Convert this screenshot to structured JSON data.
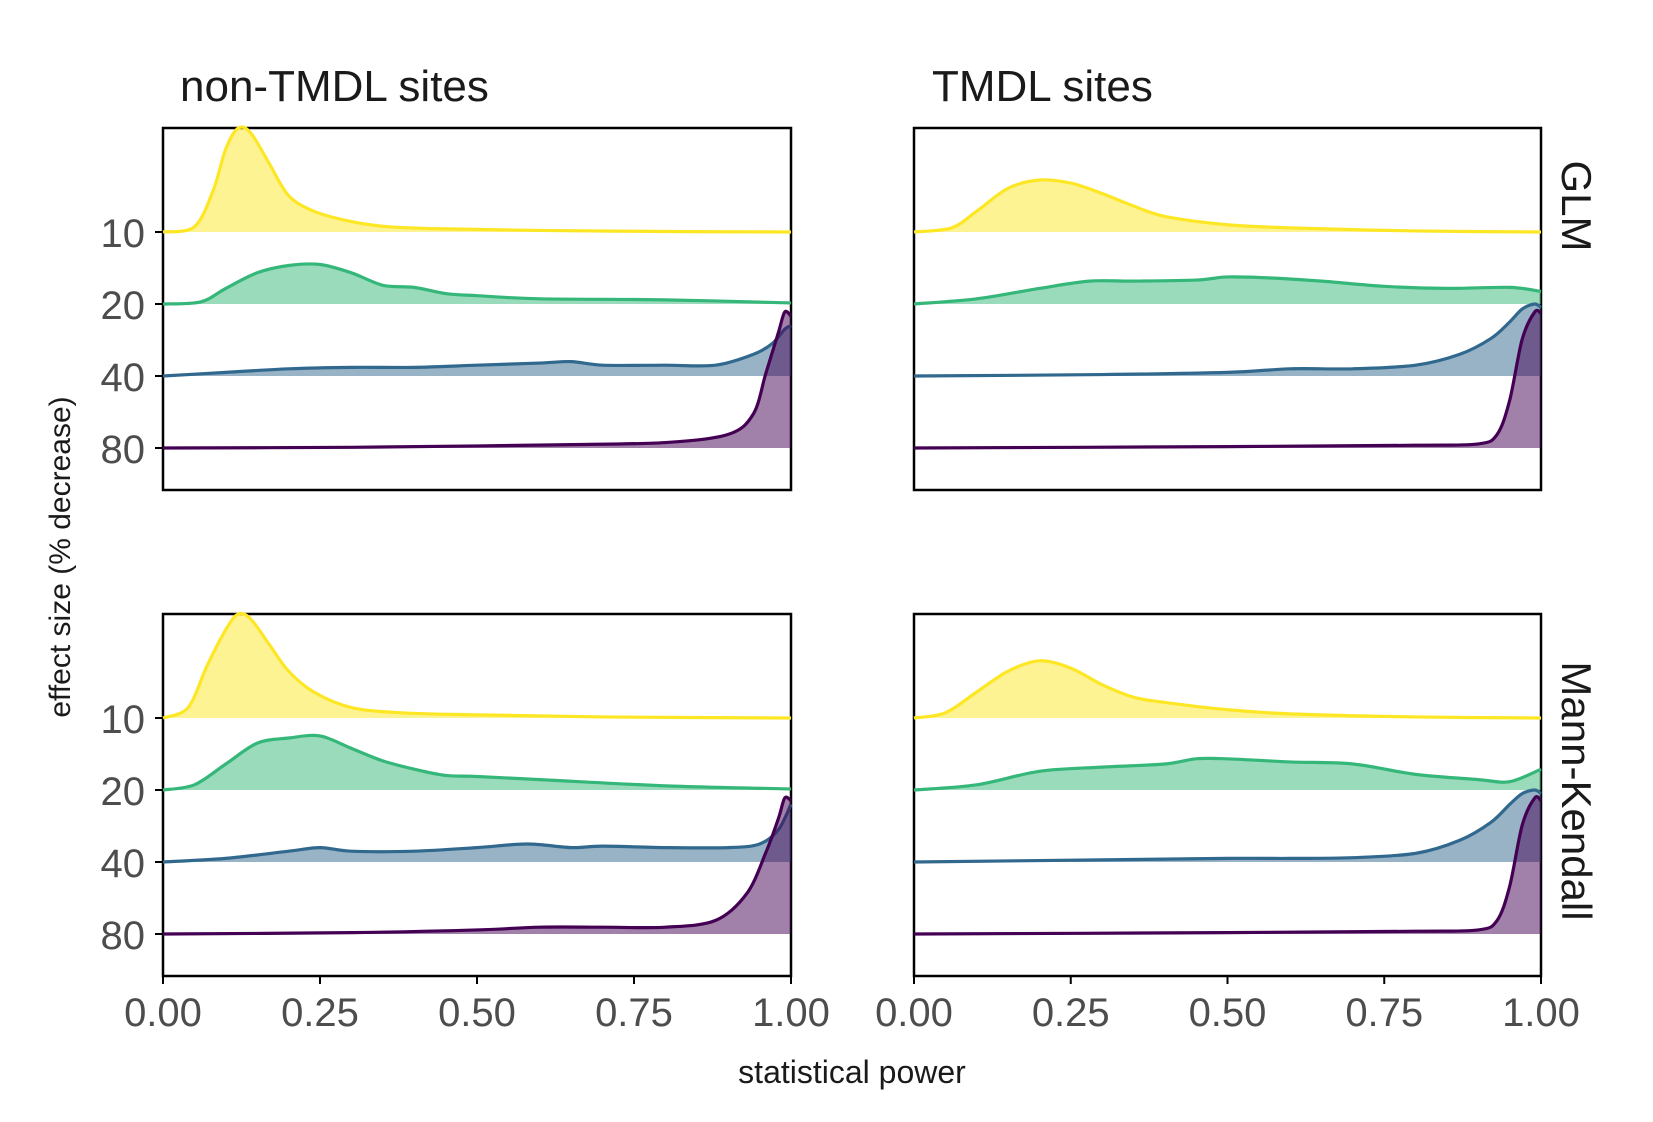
{
  "figure": {
    "col_titles": [
      "non-TMDL sites",
      "TMDL sites"
    ],
    "row_strips": [
      "GLM",
      "Mann-Kendall"
    ],
    "xlabel": "statistical power",
    "ylabel": "effect size (% decrease)"
  },
  "chart_data": [
    {
      "type": "area",
      "panel": "non-TMDL sites / GLM",
      "x_ticks": [
        "0.00",
        "0.25",
        "0.50",
        "0.75",
        "1.00"
      ],
      "y_ticks": [
        "10",
        "20",
        "40",
        "80"
      ],
      "xlim": [
        0,
        1
      ],
      "series": [
        {
          "name": "10",
          "color": "#FDE725",
          "x": [
            0,
            0.05,
            0.08,
            0.1,
            0.12,
            0.14,
            0.17,
            0.2,
            0.24,
            0.3,
            0.36,
            0.45,
            0.6,
            0.8,
            1.0
          ],
          "density": [
            0,
            0.05,
            0.4,
            0.8,
            1.0,
            0.95,
            0.65,
            0.35,
            0.2,
            0.1,
            0.05,
            0.03,
            0.015,
            0.005,
            0
          ]
        },
        {
          "name": "20",
          "color": "#35B779",
          "x": [
            0,
            0.06,
            0.1,
            0.15,
            0.2,
            0.25,
            0.3,
            0.35,
            0.4,
            0.45,
            0.5,
            0.6,
            0.8,
            1.0
          ],
          "density": [
            0,
            0.02,
            0.15,
            0.3,
            0.37,
            0.38,
            0.3,
            0.18,
            0.16,
            0.1,
            0.08,
            0.05,
            0.04,
            0.01
          ]
        },
        {
          "name": "40",
          "color": "#31688E",
          "x": [
            0,
            0.1,
            0.2,
            0.3,
            0.4,
            0.5,
            0.6,
            0.65,
            0.7,
            0.8,
            0.88,
            0.94,
            0.97,
            0.99,
            1.0
          ],
          "density": [
            0,
            0.05,
            0.1,
            0.12,
            0.12,
            0.15,
            0.18,
            0.2,
            0.15,
            0.15,
            0.15,
            0.3,
            0.45,
            0.65,
            0.7
          ]
        },
        {
          "name": "80",
          "color": "#440154",
          "x": [
            0,
            0.3,
            0.5,
            0.65,
            0.8,
            0.9,
            0.94,
            0.96,
            0.98,
            0.99,
            1.0
          ],
          "density": [
            0,
            0.005,
            0.015,
            0.025,
            0.04,
            0.1,
            0.25,
            0.55,
            0.85,
            1.0,
            0.97
          ]
        }
      ]
    },
    {
      "type": "area",
      "panel": "TMDL sites / GLM",
      "x_ticks": [
        "0.00",
        "0.25",
        "0.50",
        "0.75",
        "1.00"
      ],
      "y_ticks": [
        "10",
        "20",
        "40",
        "80"
      ],
      "xlim": [
        0,
        1
      ],
      "series": [
        {
          "name": "10",
          "color": "#FDE725",
          "x": [
            0,
            0.06,
            0.1,
            0.15,
            0.2,
            0.25,
            0.3,
            0.35,
            0.4,
            0.5,
            0.6,
            0.8,
            1.0
          ],
          "density": [
            0,
            0.04,
            0.2,
            0.42,
            0.5,
            0.47,
            0.37,
            0.25,
            0.15,
            0.07,
            0.04,
            0.01,
            0
          ]
        },
        {
          "name": "20",
          "color": "#35B779",
          "x": [
            0,
            0.1,
            0.2,
            0.28,
            0.35,
            0.45,
            0.5,
            0.57,
            0.65,
            0.75,
            0.85,
            0.95,
            1.0
          ],
          "density": [
            0,
            0.05,
            0.15,
            0.22,
            0.22,
            0.23,
            0.26,
            0.25,
            0.22,
            0.17,
            0.15,
            0.16,
            0.12
          ]
        },
        {
          "name": "40",
          "color": "#31688E",
          "x": [
            0,
            0.3,
            0.5,
            0.6,
            0.7,
            0.8,
            0.87,
            0.92,
            0.95,
            0.97,
            0.99,
            1.0
          ],
          "density": [
            0,
            0.02,
            0.05,
            0.1,
            0.1,
            0.15,
            0.3,
            0.52,
            0.75,
            0.93,
            1.0,
            0.95
          ]
        },
        {
          "name": "80",
          "color": "#440154",
          "x": [
            0,
            0.5,
            0.8,
            0.9,
            0.93,
            0.95,
            0.97,
            0.99,
            1.0
          ],
          "density": [
            0,
            0.01,
            0.02,
            0.03,
            0.1,
            0.35,
            0.8,
            1.0,
            0.99
          ]
        }
      ]
    },
    {
      "type": "area",
      "panel": "non-TMDL sites / Mann-Kendall",
      "x_ticks": [
        "0.00",
        "0.25",
        "0.50",
        "0.75",
        "1.00"
      ],
      "y_ticks": [
        "10",
        "20",
        "40",
        "80"
      ],
      "xlim": [
        0,
        1
      ],
      "series": [
        {
          "name": "10",
          "color": "#FDE725",
          "x": [
            0,
            0.04,
            0.07,
            0.1,
            0.12,
            0.14,
            0.17,
            0.2,
            0.24,
            0.3,
            0.38,
            0.5,
            0.7,
            1.0
          ],
          "density": [
            0,
            0.1,
            0.5,
            0.85,
            1.0,
            0.95,
            0.7,
            0.45,
            0.25,
            0.1,
            0.05,
            0.03,
            0.01,
            0
          ]
        },
        {
          "name": "20",
          "color": "#35B779",
          "x": [
            0,
            0.05,
            0.1,
            0.15,
            0.2,
            0.25,
            0.3,
            0.35,
            0.4,
            0.45,
            0.5,
            0.6,
            0.8,
            1.0
          ],
          "density": [
            0,
            0.05,
            0.25,
            0.45,
            0.5,
            0.52,
            0.4,
            0.28,
            0.2,
            0.14,
            0.13,
            0.1,
            0.04,
            0.01
          ]
        },
        {
          "name": "40",
          "color": "#31688E",
          "x": [
            0,
            0.1,
            0.2,
            0.25,
            0.3,
            0.4,
            0.5,
            0.58,
            0.65,
            0.7,
            0.8,
            0.9,
            0.95,
            0.98,
            1.0
          ],
          "density": [
            0,
            0.05,
            0.15,
            0.2,
            0.15,
            0.15,
            0.2,
            0.25,
            0.2,
            0.22,
            0.2,
            0.2,
            0.25,
            0.45,
            0.8
          ]
        },
        {
          "name": "80",
          "color": "#440154",
          "x": [
            0,
            0.3,
            0.5,
            0.6,
            0.7,
            0.8,
            0.88,
            0.93,
            0.96,
            0.98,
            0.99,
            1.0
          ],
          "density": [
            0,
            0.01,
            0.03,
            0.05,
            0.05,
            0.05,
            0.1,
            0.3,
            0.6,
            0.85,
            1.0,
            0.98
          ]
        }
      ]
    },
    {
      "type": "area",
      "panel": "TMDL sites / Mann-Kendall",
      "x_ticks": [
        "0.00",
        "0.25",
        "0.50",
        "0.75",
        "1.00"
      ],
      "y_ticks": [
        "10",
        "20",
        "40",
        "80"
      ],
      "xlim": [
        0,
        1
      ],
      "series": [
        {
          "name": "10",
          "color": "#FDE725",
          "x": [
            0,
            0.05,
            0.1,
            0.15,
            0.2,
            0.25,
            0.3,
            0.35,
            0.4,
            0.5,
            0.6,
            0.8,
            1.0
          ],
          "density": [
            0,
            0.05,
            0.25,
            0.45,
            0.55,
            0.48,
            0.32,
            0.2,
            0.15,
            0.08,
            0.04,
            0.01,
            0
          ]
        },
        {
          "name": "20",
          "color": "#35B779",
          "x": [
            0,
            0.1,
            0.2,
            0.3,
            0.4,
            0.45,
            0.5,
            0.6,
            0.7,
            0.8,
            0.9,
            0.95,
            1.0
          ],
          "density": [
            0,
            0.05,
            0.18,
            0.22,
            0.25,
            0.3,
            0.3,
            0.27,
            0.25,
            0.15,
            0.1,
            0.08,
            0.2
          ]
        },
        {
          "name": "40",
          "color": "#31688E",
          "x": [
            0,
            0.3,
            0.5,
            0.6,
            0.7,
            0.8,
            0.87,
            0.92,
            0.95,
            0.97,
            0.99,
            1.0
          ],
          "density": [
            0,
            0.03,
            0.05,
            0.05,
            0.06,
            0.12,
            0.3,
            0.55,
            0.8,
            0.95,
            1.0,
            0.95
          ]
        },
        {
          "name": "80",
          "color": "#440154",
          "x": [
            0,
            0.5,
            0.8,
            0.9,
            0.93,
            0.95,
            0.97,
            0.99,
            1.0
          ],
          "density": [
            0,
            0.01,
            0.02,
            0.03,
            0.1,
            0.35,
            0.8,
            1.0,
            0.98
          ]
        }
      ]
    }
  ]
}
